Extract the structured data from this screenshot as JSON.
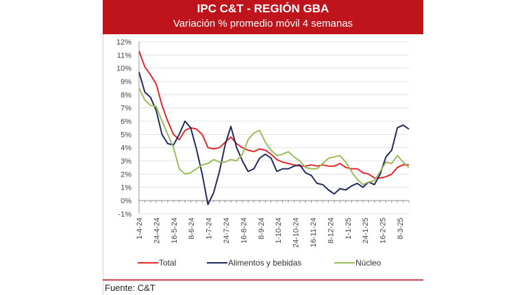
{
  "chart_data": {
    "type": "line",
    "title": "IPC C&T - REGIÓN GBA",
    "subtitle": "Variación % promedio móvil 4 semanas",
    "xlabel": "",
    "ylabel": "",
    "ylim": [
      -1,
      12
    ],
    "y_ticks": [
      "12%",
      "11%",
      "10%",
      "9%",
      "8%",
      "7%",
      "6%",
      "5%",
      "4%",
      "3%",
      "2%",
      "1%",
      "0%",
      "-1%"
    ],
    "x_tick_labels": [
      "1-4-24",
      "24-4-24",
      "16-5-24",
      "8-6-24",
      "1-7-24",
      "24-7-24",
      "16-8-24",
      "8-9-24",
      "1-10-24",
      "24-10-24",
      "16-11-24",
      "8-12-24",
      "1-1-25",
      "24-1-25",
      "16-2-25",
      "8-3-25"
    ],
    "grid": true,
    "legend_position": "bottom",
    "series": [
      {
        "name": "Total",
        "color": "#e8262a",
        "values": [
          11.3,
          10.1,
          9.5,
          8.8,
          7.2,
          6.0,
          5.0,
          4.6,
          5.3,
          5.5,
          5.4,
          5.0,
          4.0,
          3.9,
          4.0,
          4.4,
          4.8,
          4.3,
          4.0,
          3.8,
          3.7,
          3.9,
          3.8,
          3.5,
          3.1,
          2.9,
          2.8,
          2.7,
          2.6,
          2.6,
          2.7,
          2.6,
          2.7,
          2.6,
          2.6,
          2.8,
          2.5,
          2.4,
          2.4,
          2.1,
          2.0,
          1.7,
          1.7,
          1.8,
          2.0,
          2.5,
          2.7,
          2.7
        ]
      },
      {
        "name": "Alimentos y bebidas",
        "color": "#1f2a5c",
        "values": [
          9.7,
          8.2,
          7.8,
          6.8,
          5.0,
          4.3,
          4.2,
          5.0,
          6.0,
          5.5,
          3.9,
          2.0,
          -0.3,
          0.6,
          2.2,
          4.2,
          5.6,
          4.0,
          3.0,
          2.2,
          2.4,
          3.2,
          3.5,
          3.2,
          2.2,
          2.4,
          2.4,
          2.6,
          2.7,
          2.1,
          1.9,
          1.3,
          1.2,
          0.8,
          0.5,
          0.9,
          0.8,
          1.1,
          1.3,
          1.0,
          1.4,
          1.2,
          2.0,
          3.3,
          3.8,
          5.5,
          5.7,
          5.4
        ]
      },
      {
        "name": "Núcleo",
        "color": "#9bbb59",
        "values": [
          8.5,
          7.6,
          7.2,
          7.1,
          6.0,
          5.0,
          4.0,
          2.4,
          2.0,
          2.1,
          2.4,
          2.7,
          2.8,
          3.1,
          2.9,
          2.9,
          3.1,
          3.0,
          3.5,
          4.6,
          5.1,
          5.3,
          4.4,
          3.8,
          3.4,
          3.5,
          3.7,
          3.3,
          3.0,
          2.5,
          2.4,
          2.4,
          2.8,
          3.2,
          3.3,
          3.4,
          2.9,
          2.2,
          1.6,
          1.2,
          1.4,
          1.5,
          2.2,
          2.9,
          2.8,
          3.4,
          2.9,
          2.5
        ]
      }
    ]
  },
  "footer": {
    "source": "Fuente: C&T"
  }
}
